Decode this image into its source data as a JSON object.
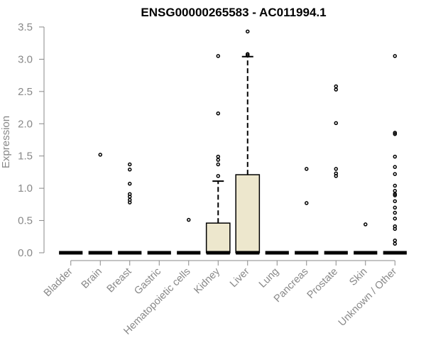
{
  "chart_data": {
    "type": "box",
    "title": "ENSG00000265583 - AC011994.1",
    "xlabel": "",
    "ylabel": "Expression",
    "ylim": [
      0,
      3.5
    ],
    "yticks": [
      "0.0",
      "0.5",
      "1.0",
      "1.5",
      "2.0",
      "2.5",
      "3.0",
      "3.5"
    ],
    "categories": [
      "Bladder",
      "Brain",
      "Breast",
      "Gastric",
      "Hematopoietic cells",
      "Kidney",
      "Liver",
      "Lung",
      "Pancreas",
      "Prostate",
      "Skin",
      "Unknown / Other"
    ],
    "boxes": [
      {
        "q1": 0,
        "median": 0,
        "q3": 0,
        "whisker_low": 0,
        "whisker_high": 0,
        "outliers": []
      },
      {
        "q1": 0,
        "median": 0,
        "q3": 0,
        "whisker_low": 0,
        "whisker_high": 0,
        "outliers": [
          1.52
        ]
      },
      {
        "q1": 0,
        "median": 0,
        "q3": 0,
        "whisker_low": 0,
        "whisker_high": 0,
        "outliers": [
          1.37,
          1.29,
          1.07,
          0.91,
          0.87,
          0.82,
          0.78
        ]
      },
      {
        "q1": 0,
        "median": 0,
        "q3": 0,
        "whisker_low": 0,
        "whisker_high": 0,
        "outliers": []
      },
      {
        "q1": 0,
        "median": 0,
        "q3": 0,
        "whisker_low": 0,
        "whisker_high": 0,
        "outliers": [
          0.51
        ]
      },
      {
        "q1": 0,
        "median": 0,
        "q3": 0.46,
        "whisker_low": 0,
        "whisker_high": 1.11,
        "outliers": [
          3.05,
          2.16,
          1.49,
          1.44,
          1.37,
          1.19
        ]
      },
      {
        "q1": 0,
        "median": 0,
        "q3": 1.21,
        "whisker_low": 0,
        "whisker_high": 3.04,
        "outliers": [
          3.43,
          3.08,
          3.06
        ]
      },
      {
        "q1": 0,
        "median": 0,
        "q3": 0,
        "whisker_low": 0,
        "whisker_high": 0,
        "outliers": []
      },
      {
        "q1": 0,
        "median": 0,
        "q3": 0,
        "whisker_low": 0,
        "whisker_high": 0,
        "outliers": [
          1.3,
          0.77
        ]
      },
      {
        "q1": 0,
        "median": 0,
        "q3": 0,
        "whisker_low": 0,
        "whisker_high": 0,
        "outliers": [
          2.58,
          2.53,
          2.01,
          1.3,
          1.23,
          1.19
        ]
      },
      {
        "q1": 0,
        "median": 0,
        "q3": 0,
        "whisker_low": 0,
        "whisker_high": 0,
        "outliers": [
          0.44
        ]
      },
      {
        "q1": 0,
        "median": 0,
        "q3": 0,
        "whisker_low": 0,
        "whisker_high": 0,
        "outliers": [
          3.05,
          1.86,
          1.84,
          1.49,
          1.33,
          1.22,
          1.04,
          0.96,
          0.91,
          0.89,
          0.8,
          0.7,
          0.62,
          0.53,
          0.41,
          0.37,
          0.19,
          0.14
        ]
      }
    ],
    "box_fill": "#ede7cd",
    "box_stroke": "#000000",
    "axis_text_color": "#888888",
    "title_color": "#000000",
    "grid": false
  }
}
